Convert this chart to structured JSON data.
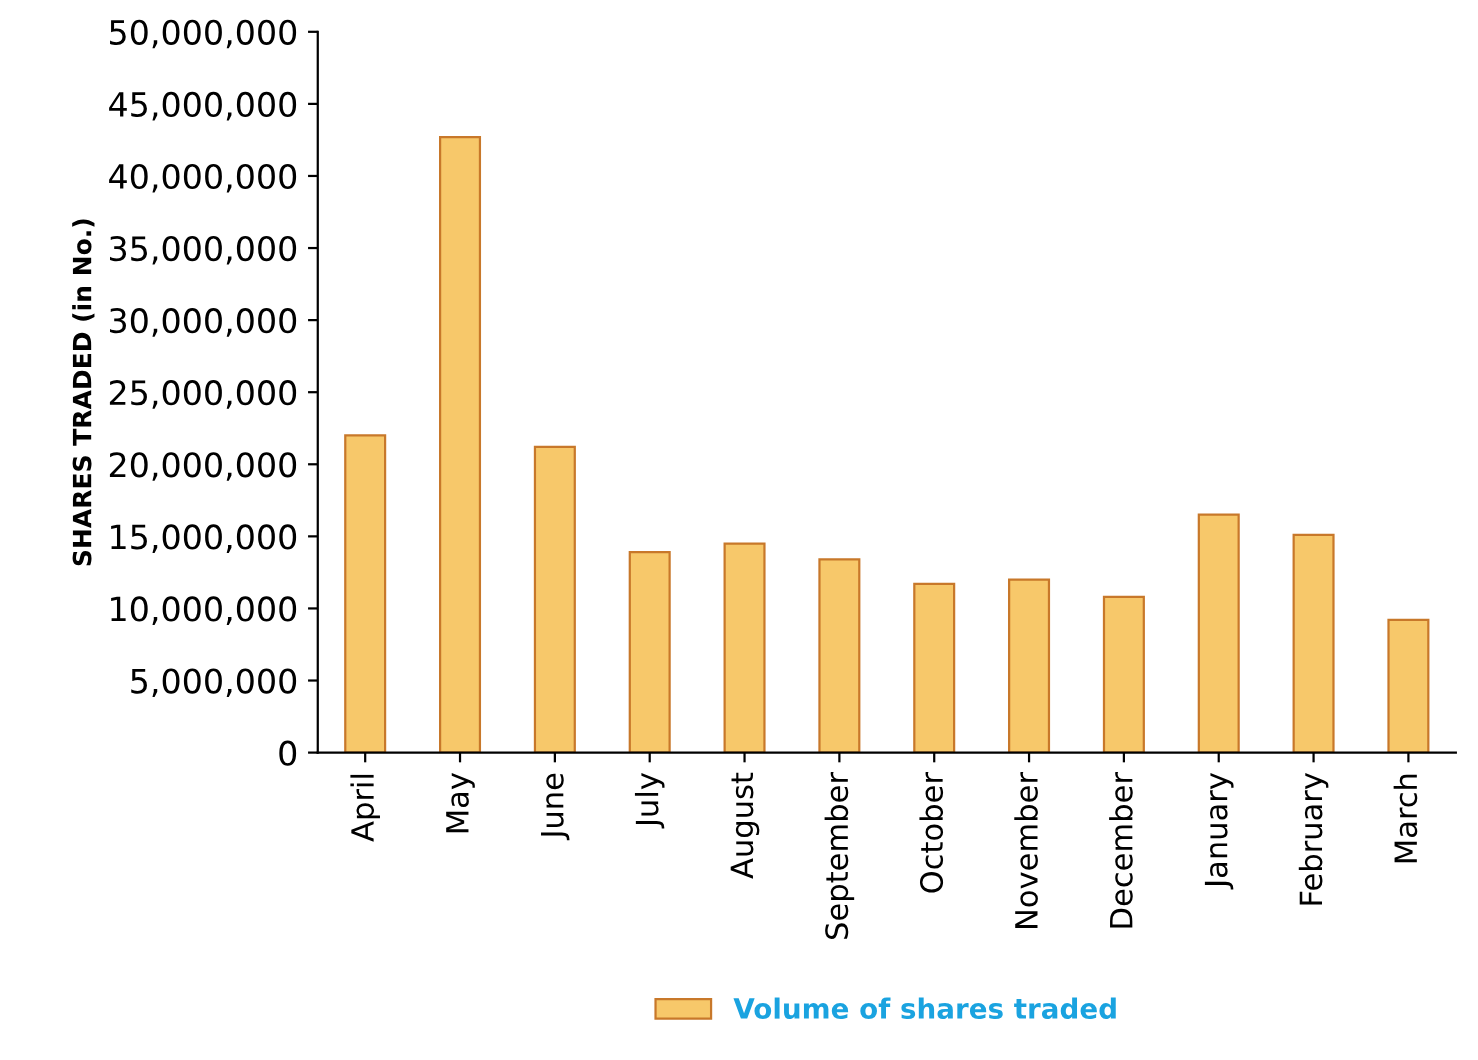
{
  "chart_data": {
    "type": "bar",
    "ylabel": "SHARES TRADED (in No.)",
    "categories": [
      "April",
      "May",
      "June",
      "July",
      "August",
      "September",
      "October",
      "November",
      "December",
      "January",
      "February",
      "March"
    ],
    "series": [
      {
        "name": "Volume of shares traded",
        "color": "#f7c86a",
        "values": [
          22000000,
          42700000,
          21200000,
          13900000,
          14500000,
          13400000,
          11700000,
          12000000,
          10800000,
          16500000,
          15100000,
          9200000
        ]
      }
    ],
    "ylim": [
      0,
      50000000
    ],
    "yticks": [
      {
        "value": 0,
        "label": "0"
      },
      {
        "value": 5000000,
        "label": "5,000,000"
      },
      {
        "value": 10000000,
        "label": "10,000,000"
      },
      {
        "value": 15000000,
        "label": "15,000,000"
      },
      {
        "value": 20000000,
        "label": "20,000,000"
      },
      {
        "value": 25000000,
        "label": "25,000,000"
      },
      {
        "value": 30000000,
        "label": "30,000,000"
      },
      {
        "value": 35000000,
        "label": "35,000,000"
      },
      {
        "value": 40000000,
        "label": "40,000,000"
      },
      {
        "value": 45000000,
        "label": "45,000,000"
      },
      {
        "value": 50000000,
        "label": "50,000,000"
      }
    ],
    "legend": "bottom",
    "grid": false
  }
}
